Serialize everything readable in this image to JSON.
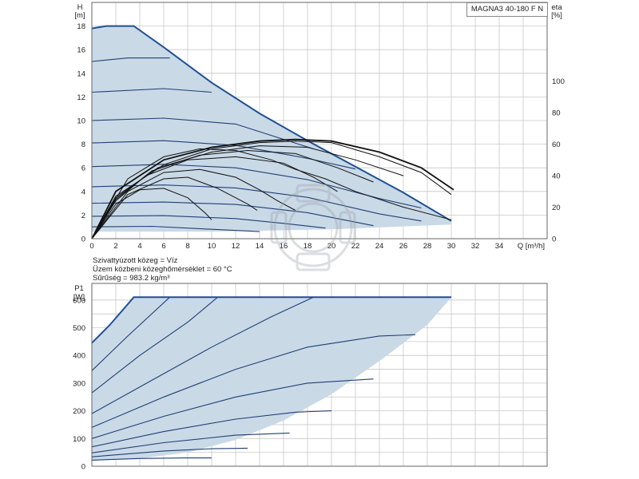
{
  "title_box": "MAGNA3 40-180 F N",
  "notes": {
    "fluid": "Szivattyúzott közeg = Víz",
    "temperature": "Üzem közbeni közeghőmérséklet = 60 °C",
    "density": "Sűrűség = 983.2 kg/m³"
  },
  "colors": {
    "curve": "#1f3f75",
    "envelope": "#1f4f95",
    "fill": "#c9d9e6",
    "grid": "#c8c8c8",
    "efficiency": "#111111",
    "frame": "#666666"
  },
  "chart_data": [
    {
      "type": "line",
      "name": "head",
      "xlabel": "Q [m³/h]",
      "ylabel_top": "H",
      "ylabel_unit": "[m]",
      "xlim": [
        0,
        38
      ],
      "ylim": [
        0,
        20
      ],
      "xticks": [
        0,
        2,
        4,
        6,
        8,
        10,
        12,
        14,
        16,
        18,
        20,
        22,
        24,
        26,
        28,
        30,
        32,
        34
      ],
      "yticks": [
        0,
        2,
        4,
        6,
        8,
        10,
        12,
        14,
        16,
        18
      ],
      "grid": true,
      "max_curve": [
        [
          0,
          17.8
        ],
        [
          1.2,
          18
        ],
        [
          3.5,
          18
        ],
        [
          6,
          16.2
        ],
        [
          10,
          13.2
        ],
        [
          14,
          10.6
        ],
        [
          18,
          8.3
        ],
        [
          22,
          6.1
        ],
        [
          26,
          3.9
        ],
        [
          30,
          1.5
        ]
      ],
      "min_curve": [
        [
          0,
          0.6
        ],
        [
          10,
          0.6
        ],
        [
          20,
          0.8
        ],
        [
          30,
          1.2
        ]
      ],
      "speed_curves": [
        [
          [
            0,
            15.0
          ],
          [
            3,
            15.3
          ],
          [
            6.5,
            15.3
          ]
        ],
        [
          [
            0,
            12.4
          ],
          [
            6,
            12.7
          ],
          [
            10,
            12.4
          ]
        ],
        [
          [
            0,
            10.0
          ],
          [
            6,
            10.2
          ],
          [
            12,
            9.7
          ],
          [
            18.5,
            7.6
          ]
        ],
        [
          [
            0,
            8.1
          ],
          [
            6,
            8.3
          ],
          [
            12,
            7.9
          ],
          [
            18,
            6.8
          ],
          [
            22,
            5.9
          ]
        ],
        [
          [
            0,
            6.1
          ],
          [
            6,
            6.3
          ],
          [
            12,
            6.0
          ],
          [
            18,
            5.0
          ],
          [
            24,
            3.4
          ],
          [
            27.5,
            2.6
          ]
        ],
        [
          [
            0,
            4.4
          ],
          [
            6,
            4.55
          ],
          [
            12,
            4.3
          ],
          [
            18,
            3.5
          ],
          [
            24,
            2.1
          ],
          [
            27.5,
            1.5
          ]
        ],
        [
          [
            0,
            3.0
          ],
          [
            6,
            3.1
          ],
          [
            12,
            2.9
          ],
          [
            18,
            2.2
          ],
          [
            23.5,
            1.1
          ]
        ],
        [
          [
            0,
            1.9
          ],
          [
            6,
            1.95
          ],
          [
            12,
            1.7
          ],
          [
            16,
            1.3
          ],
          [
            19.5,
            0.9
          ]
        ],
        [
          [
            0,
            1.0
          ],
          [
            5,
            1.05
          ],
          [
            10,
            0.8
          ],
          [
            14,
            0.6
          ]
        ]
      ]
    },
    {
      "type": "line",
      "name": "efficiency",
      "ylabel_top": "eta",
      "ylabel_unit": "[%]",
      "ylim": [
        0,
        150
      ],
      "yticks": [
        0,
        20,
        40,
        60,
        80,
        100
      ],
      "curves": [
        [
          [
            0,
            0
          ],
          [
            3,
            38
          ],
          [
            6,
            52
          ],
          [
            9,
            57
          ],
          [
            12,
            56
          ],
          [
            15,
            50
          ],
          [
            17,
            44
          ],
          [
            19.5,
            38
          ],
          [
            22,
            30
          ],
          [
            26,
            20
          ],
          [
            30,
            12
          ]
        ],
        [
          [
            0,
            0
          ],
          [
            2,
            30
          ],
          [
            6,
            50
          ],
          [
            10,
            58
          ],
          [
            14,
            62
          ],
          [
            17,
            63
          ],
          [
            20,
            62
          ],
          [
            24,
            55
          ],
          [
            27.5,
            45
          ],
          [
            30.2,
            31
          ]
        ],
        [
          [
            0,
            0
          ],
          [
            2,
            27
          ],
          [
            6,
            47
          ],
          [
            10,
            57
          ],
          [
            14,
            61
          ],
          [
            17,
            62
          ],
          [
            20,
            61
          ],
          [
            24,
            52
          ],
          [
            27.5,
            42
          ],
          [
            30,
            28
          ]
        ],
        [
          [
            0,
            0
          ],
          [
            3,
            30
          ],
          [
            6,
            42
          ],
          [
            9,
            44
          ],
          [
            12,
            39
          ],
          [
            14,
            31
          ],
          [
            15.5,
            24
          ],
          [
            17,
            18
          ]
        ],
        [
          [
            0,
            0
          ],
          [
            3,
            28
          ],
          [
            6,
            38
          ],
          [
            8,
            39
          ],
          [
            10.5,
            32
          ],
          [
            13,
            22
          ],
          [
            13.8,
            18
          ]
        ],
        [
          [
            0,
            0
          ],
          [
            2,
            22
          ],
          [
            4,
            31
          ],
          [
            6,
            32
          ],
          [
            8,
            26
          ],
          [
            9.5,
            16
          ],
          [
            10,
            12
          ]
        ],
        [
          [
            0,
            0
          ],
          [
            2,
            24
          ],
          [
            4.5,
            40
          ],
          [
            8,
            50
          ],
          [
            12,
            52
          ],
          [
            16,
            48
          ],
          [
            18.5,
            39
          ],
          [
            20.5,
            30
          ]
        ],
        [
          [
            0,
            0
          ],
          [
            2,
            25
          ],
          [
            5,
            43
          ],
          [
            9,
            53
          ],
          [
            13,
            56
          ],
          [
            17,
            54
          ],
          [
            20.5,
            45
          ],
          [
            23.5,
            36
          ]
        ],
        [
          [
            0,
            0
          ],
          [
            2,
            26
          ],
          [
            5.5,
            45
          ],
          [
            10,
            55
          ],
          [
            14,
            59
          ],
          [
            18,
            58
          ],
          [
            22,
            50
          ],
          [
            26,
            40
          ]
        ]
      ]
    },
    {
      "type": "line",
      "name": "power",
      "ylabel_top": "P1",
      "ylabel_unit": "[W]",
      "xlim": [
        0,
        38
      ],
      "ylim": [
        0,
        660
      ],
      "yticks": [
        0,
        100,
        200,
        300,
        400,
        500,
        600
      ],
      "grid": true,
      "max_curve": [
        [
          0,
          445
        ],
        [
          1.5,
          510
        ],
        [
          3.5,
          610
        ],
        [
          30,
          610
        ]
      ],
      "min_curve": [
        [
          0,
          20
        ],
        [
          6,
          28
        ],
        [
          10,
          30
        ]
      ],
      "envelope_right": [
        [
          30,
          610
        ],
        [
          28,
          510
        ],
        [
          24,
          380
        ],
        [
          20,
          260
        ],
        [
          16,
          165
        ],
        [
          12,
          95
        ],
        [
          8,
          50
        ],
        [
          4,
          28
        ],
        [
          0,
          20
        ]
      ],
      "speed_curves": [
        [
          [
            0,
            345
          ],
          [
            3,
            470
          ],
          [
            6.5,
            610
          ]
        ],
        [
          [
            0,
            265
          ],
          [
            4,
            400
          ],
          [
            8,
            520
          ],
          [
            10.5,
            610
          ]
        ],
        [
          [
            0,
            190
          ],
          [
            5,
            310
          ],
          [
            10,
            430
          ],
          [
            15,
            540
          ],
          [
            18.5,
            610
          ]
        ],
        [
          [
            0,
            140
          ],
          [
            6,
            250
          ],
          [
            12,
            350
          ],
          [
            18,
            430
          ],
          [
            24,
            470
          ],
          [
            27,
            475
          ]
        ],
        [
          [
            0,
            100
          ],
          [
            6,
            180
          ],
          [
            12,
            250
          ],
          [
            18,
            300
          ],
          [
            23.5,
            315
          ]
        ],
        [
          [
            0,
            70
          ],
          [
            6,
            125
          ],
          [
            12,
            170
          ],
          [
            17,
            195
          ],
          [
            20,
            200
          ]
        ],
        [
          [
            0,
            48
          ],
          [
            6,
            85
          ],
          [
            12,
            112
          ],
          [
            16.5,
            120
          ]
        ],
        [
          [
            0,
            34
          ],
          [
            6,
            55
          ],
          [
            10,
            63
          ],
          [
            13,
            65
          ]
        ],
        [
          [
            0,
            22
          ],
          [
            4,
            28
          ],
          [
            8,
            30
          ],
          [
            10,
            30
          ]
        ]
      ]
    }
  ]
}
